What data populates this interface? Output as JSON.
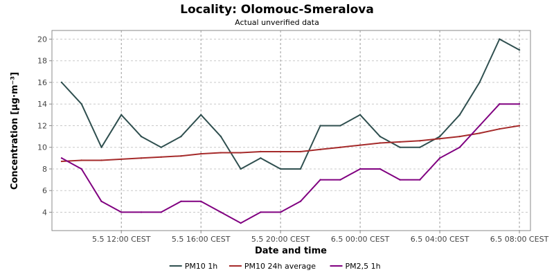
{
  "chart_data": {
    "type": "line",
    "title": "Locality: Olomouc-Smeralova",
    "subtitle": "Actual unverified data",
    "xlabel": "Date and time",
    "ylabel": "Concentration [µg·m⁻³]",
    "x": [
      "5.5 09:00",
      "5.5 10:00",
      "5.5 11:00",
      "5.5 12:00",
      "5.5 13:00",
      "5.5 14:00",
      "5.5 15:00",
      "5.5 16:00",
      "5.5 17:00",
      "5.5 18:00",
      "5.5 19:00",
      "5.5 20:00",
      "5.5 21:00",
      "5.5 22:00",
      "5.5 23:00",
      "6.5 00:00",
      "6.5 01:00",
      "6.5 02:00",
      "6.5 03:00",
      "6.5 04:00",
      "6.5 05:00",
      "6.5 06:00",
      "6.5 07:00",
      "6.5 08:00"
    ],
    "xticks": [
      "5.5 12:00 CEST",
      "5.5 16:00 CEST",
      "5.5 20:00 CEST",
      "6.5 00:00 CEST",
      "6.5 04:00 CEST",
      "6.5 08:00 CEST"
    ],
    "yticks": [
      4,
      6,
      8,
      10,
      12,
      14,
      16,
      18,
      20
    ],
    "ylim": [
      2.3,
      20.8
    ],
    "grid": true,
    "legend_position": "bottom",
    "series": [
      {
        "name": "PM10 1h",
        "color": "#2f4f4f",
        "values": [
          16,
          14,
          10,
          13,
          11,
          10,
          11,
          13,
          11,
          8,
          9,
          8,
          8,
          12,
          12,
          13,
          11,
          10,
          10,
          11,
          13,
          16,
          20,
          19
        ]
      },
      {
        "name": "PM10 24h average",
        "color": "#a52a2a",
        "values": [
          8.7,
          8.8,
          8.8,
          8.9,
          9.0,
          9.1,
          9.2,
          9.4,
          9.5,
          9.5,
          9.6,
          9.6,
          9.6,
          9.8,
          10.0,
          10.2,
          10.4,
          10.5,
          10.6,
          10.8,
          11.0,
          11.3,
          11.7,
          12.0
        ]
      },
      {
        "name": "PM2,5 1h",
        "color": "#800080",
        "values": [
          9,
          8,
          5,
          4,
          4,
          4,
          5,
          5,
          4,
          3,
          4,
          4,
          5,
          7,
          7,
          8,
          8,
          7,
          7,
          9,
          10,
          12,
          14,
          14
        ]
      }
    ]
  }
}
